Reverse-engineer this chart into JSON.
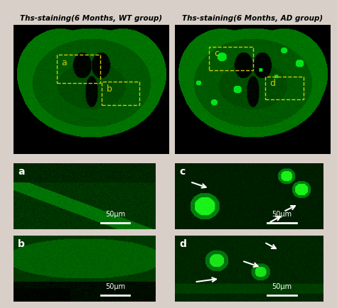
{
  "title_left": "Ths-staining(6 Months, WT group)",
  "title_right": "Ths-staining(6 Months, AD group)",
  "label_A": "A",
  "label_B": "B",
  "label_C": "C",
  "label_D": "D",
  "label_a": "a",
  "label_b": "b",
  "label_c": "c",
  "label_d": "d",
  "scalebar_text": "50μm",
  "bg_color": "#d8d0c8",
  "white": "#ffffff"
}
